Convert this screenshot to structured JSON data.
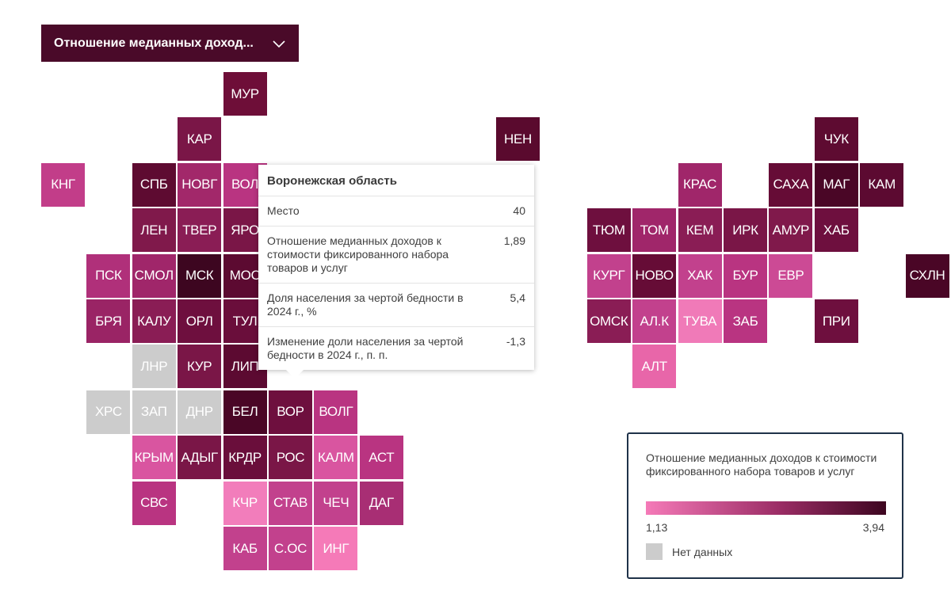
{
  "dropdown": {
    "label": "Отношение медианных доход..."
  },
  "tiles": [
    {
      "label": "МУР",
      "col": 4,
      "row": 0,
      "color": "#6e0e38"
    },
    {
      "label": "КАР",
      "col": 3,
      "row": 1,
      "color": "#7a1647"
    },
    {
      "label": "НЕН",
      "col": 10,
      "row": 1,
      "color": "#5a0a2e"
    },
    {
      "label": "ЧУК",
      "col": 17,
      "row": 1,
      "color": "#5e0b31"
    },
    {
      "label": "КНГ",
      "col": 0,
      "row": 2,
      "color": "#c23d89"
    },
    {
      "label": "СПБ",
      "col": 2,
      "row": 2,
      "color": "#5e0b31"
    },
    {
      "label": "НОВГ",
      "col": 3,
      "row": 2,
      "color": "#a2286a"
    },
    {
      "label": "ВОЛ",
      "col": 4,
      "row": 2,
      "color": "#b93481"
    },
    {
      "label": "КРАС",
      "col": 14,
      "row": 2,
      "color": "#a0266a"
    },
    {
      "label": "САХА",
      "col": 16,
      "row": 2,
      "color": "#660c36"
    },
    {
      "label": "МАГ",
      "col": 17,
      "row": 2,
      "color": "#4a0626"
    },
    {
      "label": "КАМ",
      "col": 18,
      "row": 2,
      "color": "#5c0a31"
    },
    {
      "label": "ЛЕН",
      "col": 2,
      "row": 3,
      "color": "#80194b"
    },
    {
      "label": "ТВЕР",
      "col": 3,
      "row": 3,
      "color": "#8a1d55"
    },
    {
      "label": "ЯРО",
      "col": 4,
      "row": 3,
      "color": "#7a1647"
    },
    {
      "label": "ТЮМ",
      "col": 12,
      "row": 3,
      "color": "#6e0f3e"
    },
    {
      "label": "ТОМ",
      "col": 13,
      "row": 3,
      "color": "#a0266a"
    },
    {
      "label": "КЕМ",
      "col": 14,
      "row": 3,
      "color": "#8a1d55"
    },
    {
      "label": "ИРК",
      "col": 15,
      "row": 3,
      "color": "#7a1647"
    },
    {
      "label": "АМУР",
      "col": 16,
      "row": 3,
      "color": "#80194b"
    },
    {
      "label": "ХАБ",
      "col": 17,
      "row": 3,
      "color": "#6e0f3e"
    },
    {
      "label": "ПСК",
      "col": 1,
      "row": 4,
      "color": "#b0307a"
    },
    {
      "label": "СМОЛ",
      "col": 2,
      "row": 4,
      "color": "#a0266a"
    },
    {
      "label": "МСК",
      "col": 3,
      "row": 4,
      "color": "#3d0620"
    },
    {
      "label": "МОС",
      "col": 4,
      "row": 4,
      "color": "#5c0a31"
    },
    {
      "label": "КУРГ",
      "col": 12,
      "row": 4,
      "color": "#c2418d"
    },
    {
      "label": "НОВО",
      "col": 13,
      "row": 4,
      "color": "#660c36"
    },
    {
      "label": "ХАК",
      "col": 14,
      "row": 4,
      "color": "#c2418d"
    },
    {
      "label": "БУР",
      "col": 15,
      "row": 4,
      "color": "#b93481"
    },
    {
      "label": "ЕВР",
      "col": 16,
      "row": 4,
      "color": "#cc4a95"
    },
    {
      "label": "СХЛН",
      "col": 19,
      "row": 4,
      "color": "#4a0626"
    },
    {
      "label": "БРЯ",
      "col": 1,
      "row": 5,
      "color": "#9a2465"
    },
    {
      "label": "КАЛУ",
      "col": 2,
      "row": 5,
      "color": "#8a1d55"
    },
    {
      "label": "ОРЛ",
      "col": 3,
      "row": 5,
      "color": "#6e0f3e"
    },
    {
      "label": "ТУЛ",
      "col": 4,
      "row": 5,
      "color": "#6a0e3b"
    },
    {
      "label": "ОМСК",
      "col": 12,
      "row": 5,
      "color": "#8a1d55"
    },
    {
      "label": "АЛ.К",
      "col": 13,
      "row": 5,
      "color": "#c2418d"
    },
    {
      "label": "ТУВА",
      "col": 14,
      "row": 5,
      "color": "#f07ab8"
    },
    {
      "label": "ЗАБ",
      "col": 15,
      "row": 5,
      "color": "#b93481"
    },
    {
      "label": "ПРИ",
      "col": 17,
      "row": 5,
      "color": "#6e0f3e"
    },
    {
      "label": "ЛНР",
      "col": 2,
      "row": 6,
      "color": "#cccccc"
    },
    {
      "label": "КУР",
      "col": 3,
      "row": 6,
      "color": "#7a1647"
    },
    {
      "label": "ЛИП",
      "col": 4,
      "row": 6,
      "color": "#5c0a31"
    },
    {
      "label": "АЛТ",
      "col": 13,
      "row": 6,
      "color": "#e866a9"
    },
    {
      "label": "ХРС",
      "col": 1,
      "row": 7,
      "color": "#cccccc"
    },
    {
      "label": "ЗАП",
      "col": 2,
      "row": 7,
      "color": "#cccccc"
    },
    {
      "label": "ДНР",
      "col": 3,
      "row": 7,
      "color": "#cccccc"
    },
    {
      "label": "БЕЛ",
      "col": 4,
      "row": 7,
      "color": "#4a0626"
    },
    {
      "label": "ВОР",
      "col": 5,
      "row": 7,
      "color": "#6e0f3e"
    },
    {
      "label": "ВОЛГ",
      "col": 6,
      "row": 7,
      "color": "#b93481"
    },
    {
      "label": "КРЫМ",
      "col": 2,
      "row": 8,
      "color": "#d955a0"
    },
    {
      "label": "АДЫГ",
      "col": 3,
      "row": 8,
      "color": "#7a1647"
    },
    {
      "label": "КРДР",
      "col": 4,
      "row": 8,
      "color": "#6a0e3b"
    },
    {
      "label": "РОС",
      "col": 5,
      "row": 8,
      "color": "#7a1647"
    },
    {
      "label": "КАЛМ",
      "col": 6,
      "row": 8,
      "color": "#d955a0"
    },
    {
      "label": "АСТ",
      "col": 7,
      "row": 8,
      "color": "#b93481"
    },
    {
      "label": "СВС",
      "col": 2,
      "row": 9,
      "color": "#b93481"
    },
    {
      "label": "КЧР",
      "col": 4,
      "row": 9,
      "color": "#f27dbb"
    },
    {
      "label": "СТАВ",
      "col": 5,
      "row": 9,
      "color": "#c2418d"
    },
    {
      "label": "ЧЕЧ",
      "col": 6,
      "row": 9,
      "color": "#c2418d"
    },
    {
      "label": "ДАГ",
      "col": 7,
      "row": 9,
      "color": "#a82e74"
    },
    {
      "label": "КАБ",
      "col": 4,
      "row": 10,
      "color": "#c2418d"
    },
    {
      "label": "С.ОС",
      "col": 5,
      "row": 10,
      "color": "#c2418d"
    },
    {
      "label": "ИНГ",
      "col": 6,
      "row": 10,
      "color": "#f57ab8"
    }
  ],
  "tooltip": {
    "title": "Воронежская область",
    "rows": [
      {
        "label": "Место",
        "value": "40"
      },
      {
        "label": "Отношение медианных доходов к стоимости фиксированного набора товаров и услуг",
        "value": "1,89"
      },
      {
        "label": "Доля населения за чертой бедности в 2024 г., %",
        "value": "5,4"
      },
      {
        "label": "Изменение доли населения за чертой бедности в 2024 г., п. п.",
        "value": "-1,3"
      }
    ]
  },
  "legend": {
    "title": "Отношение медианных доходов к стоимости фиксированного набора товаров и услуг",
    "min": "1,13",
    "max": "3,94",
    "no_data": "Нет данных",
    "no_data_color": "#cccccc"
  }
}
